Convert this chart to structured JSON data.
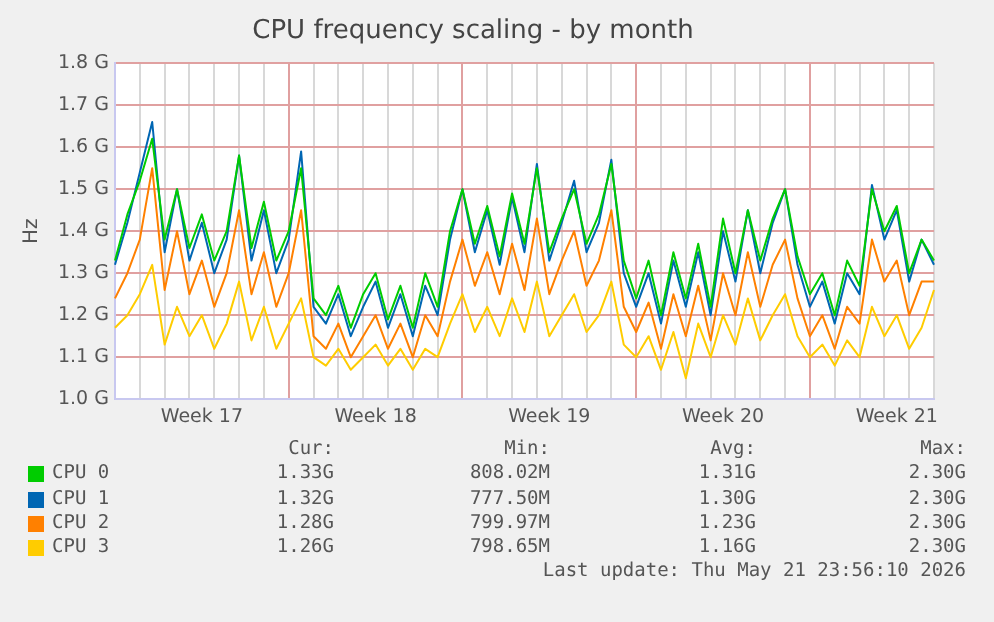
{
  "chart_data": {
    "type": "line",
    "title": "CPU frequency scaling - by month",
    "ylabel": "Hz",
    "categories": [
      null,
      null,
      null,
      null,
      null,
      null,
      null,
      "Week 17",
      null,
      null,
      null,
      null,
      null,
      null,
      null,
      null,
      null,
      null,
      null,
      null,
      null,
      "Week 18",
      null,
      null,
      null,
      null,
      null,
      null,
      null,
      null,
      null,
      null,
      null,
      null,
      null,
      "Week 19",
      null,
      null,
      null,
      null,
      null,
      null,
      null,
      null,
      null,
      null,
      null,
      null,
      null,
      "Week 20",
      null,
      null,
      null,
      null,
      null,
      null,
      null,
      null,
      null,
      null,
      null,
      null,
      null,
      "Week 21",
      null,
      null,
      null
    ],
    "series": [
      {
        "name": "CPU 0",
        "color": "#00cc00",
        "values": [
          1.33,
          1.44,
          1.52,
          1.62,
          1.38,
          1.5,
          1.36,
          1.44,
          1.33,
          1.4,
          1.58,
          1.36,
          1.47,
          1.33,
          1.4,
          1.55,
          1.24,
          1.2,
          1.27,
          1.17,
          1.25,
          1.3,
          1.19,
          1.27,
          1.17,
          1.3,
          1.22,
          1.4,
          1.5,
          1.37,
          1.46,
          1.34,
          1.49,
          1.37,
          1.55,
          1.35,
          1.43,
          1.5,
          1.37,
          1.44,
          1.56,
          1.33,
          1.24,
          1.33,
          1.2,
          1.35,
          1.24,
          1.37,
          1.22,
          1.43,
          1.3,
          1.45,
          1.33,
          1.43,
          1.5,
          1.34,
          1.25,
          1.3,
          1.2,
          1.33,
          1.27,
          1.5,
          1.4,
          1.46,
          1.3,
          1.38,
          1.33
        ]
      },
      {
        "name": "CPU 1",
        "color": "#0066b3",
        "values": [
          1.32,
          1.42,
          1.54,
          1.66,
          1.35,
          1.5,
          1.33,
          1.42,
          1.3,
          1.38,
          1.58,
          1.33,
          1.45,
          1.3,
          1.38,
          1.59,
          1.22,
          1.18,
          1.25,
          1.15,
          1.22,
          1.28,
          1.17,
          1.25,
          1.15,
          1.27,
          1.2,
          1.38,
          1.5,
          1.35,
          1.45,
          1.32,
          1.48,
          1.35,
          1.56,
          1.33,
          1.42,
          1.52,
          1.35,
          1.42,
          1.57,
          1.3,
          1.22,
          1.3,
          1.18,
          1.33,
          1.22,
          1.35,
          1.2,
          1.4,
          1.28,
          1.45,
          1.3,
          1.42,
          1.5,
          1.32,
          1.22,
          1.28,
          1.18,
          1.3,
          1.25,
          1.51,
          1.38,
          1.45,
          1.28,
          1.38,
          1.32
        ]
      },
      {
        "name": "CPU 2",
        "color": "#ff8000",
        "values": [
          1.24,
          1.3,
          1.38,
          1.55,
          1.26,
          1.4,
          1.25,
          1.33,
          1.22,
          1.3,
          1.45,
          1.25,
          1.35,
          1.22,
          1.3,
          1.45,
          1.15,
          1.12,
          1.18,
          1.1,
          1.15,
          1.2,
          1.12,
          1.18,
          1.1,
          1.2,
          1.15,
          1.28,
          1.38,
          1.27,
          1.35,
          1.25,
          1.37,
          1.26,
          1.43,
          1.25,
          1.33,
          1.4,
          1.27,
          1.33,
          1.45,
          1.22,
          1.16,
          1.23,
          1.12,
          1.25,
          1.15,
          1.27,
          1.14,
          1.3,
          1.2,
          1.35,
          1.22,
          1.32,
          1.38,
          1.24,
          1.15,
          1.2,
          1.12,
          1.22,
          1.18,
          1.38,
          1.28,
          1.33,
          1.2,
          1.28,
          1.28
        ]
      },
      {
        "name": "CPU 3",
        "color": "#ffcc00",
        "values": [
          1.17,
          1.2,
          1.25,
          1.32,
          1.13,
          1.22,
          1.15,
          1.2,
          1.12,
          1.18,
          1.28,
          1.14,
          1.22,
          1.12,
          1.18,
          1.24,
          1.1,
          1.08,
          1.12,
          1.07,
          1.1,
          1.13,
          1.08,
          1.12,
          1.07,
          1.12,
          1.1,
          1.18,
          1.25,
          1.16,
          1.22,
          1.15,
          1.24,
          1.16,
          1.28,
          1.15,
          1.2,
          1.25,
          1.16,
          1.2,
          1.28,
          1.13,
          1.1,
          1.15,
          1.07,
          1.16,
          1.05,
          1.18,
          1.1,
          1.2,
          1.13,
          1.24,
          1.14,
          1.2,
          1.25,
          1.15,
          1.1,
          1.13,
          1.08,
          1.14,
          1.1,
          1.22,
          1.15,
          1.2,
          1.12,
          1.17,
          1.26
        ]
      }
    ],
    "ylim": [
      1.0,
      1.8
    ],
    "yticks": [
      {
        "value": 1.0,
        "label": "1.0 G"
      },
      {
        "value": 1.1,
        "label": "1.1 G"
      },
      {
        "value": 1.2,
        "label": "1.2 G"
      },
      {
        "value": 1.3,
        "label": "1.3 G"
      },
      {
        "value": 1.4,
        "label": "1.4 G"
      },
      {
        "value": 1.5,
        "label": "1.5 G"
      },
      {
        "value": 1.6,
        "label": "1.6 G"
      },
      {
        "value": 1.7,
        "label": "1.7 G"
      },
      {
        "value": 1.8,
        "label": "1.8 G"
      }
    ],
    "grid": true,
    "legend": "bottom",
    "marker": "none",
    "line_style": "solid",
    "annotations": [
      "Cur:",
      "Min:",
      "Avg:",
      "Max:",
      "1.33G",
      "808.02M",
      "1.31G",
      "2.30G",
      "1.32G",
      "777.50M",
      "1.30G",
      "2.30G",
      "1.28G",
      "799.97M",
      "1.23G",
      "2.30G",
      "1.26G",
      "798.65M",
      "1.16G",
      "2.30G",
      "Last update: Thu May 21 23:56:10 2026"
    ]
  }
}
